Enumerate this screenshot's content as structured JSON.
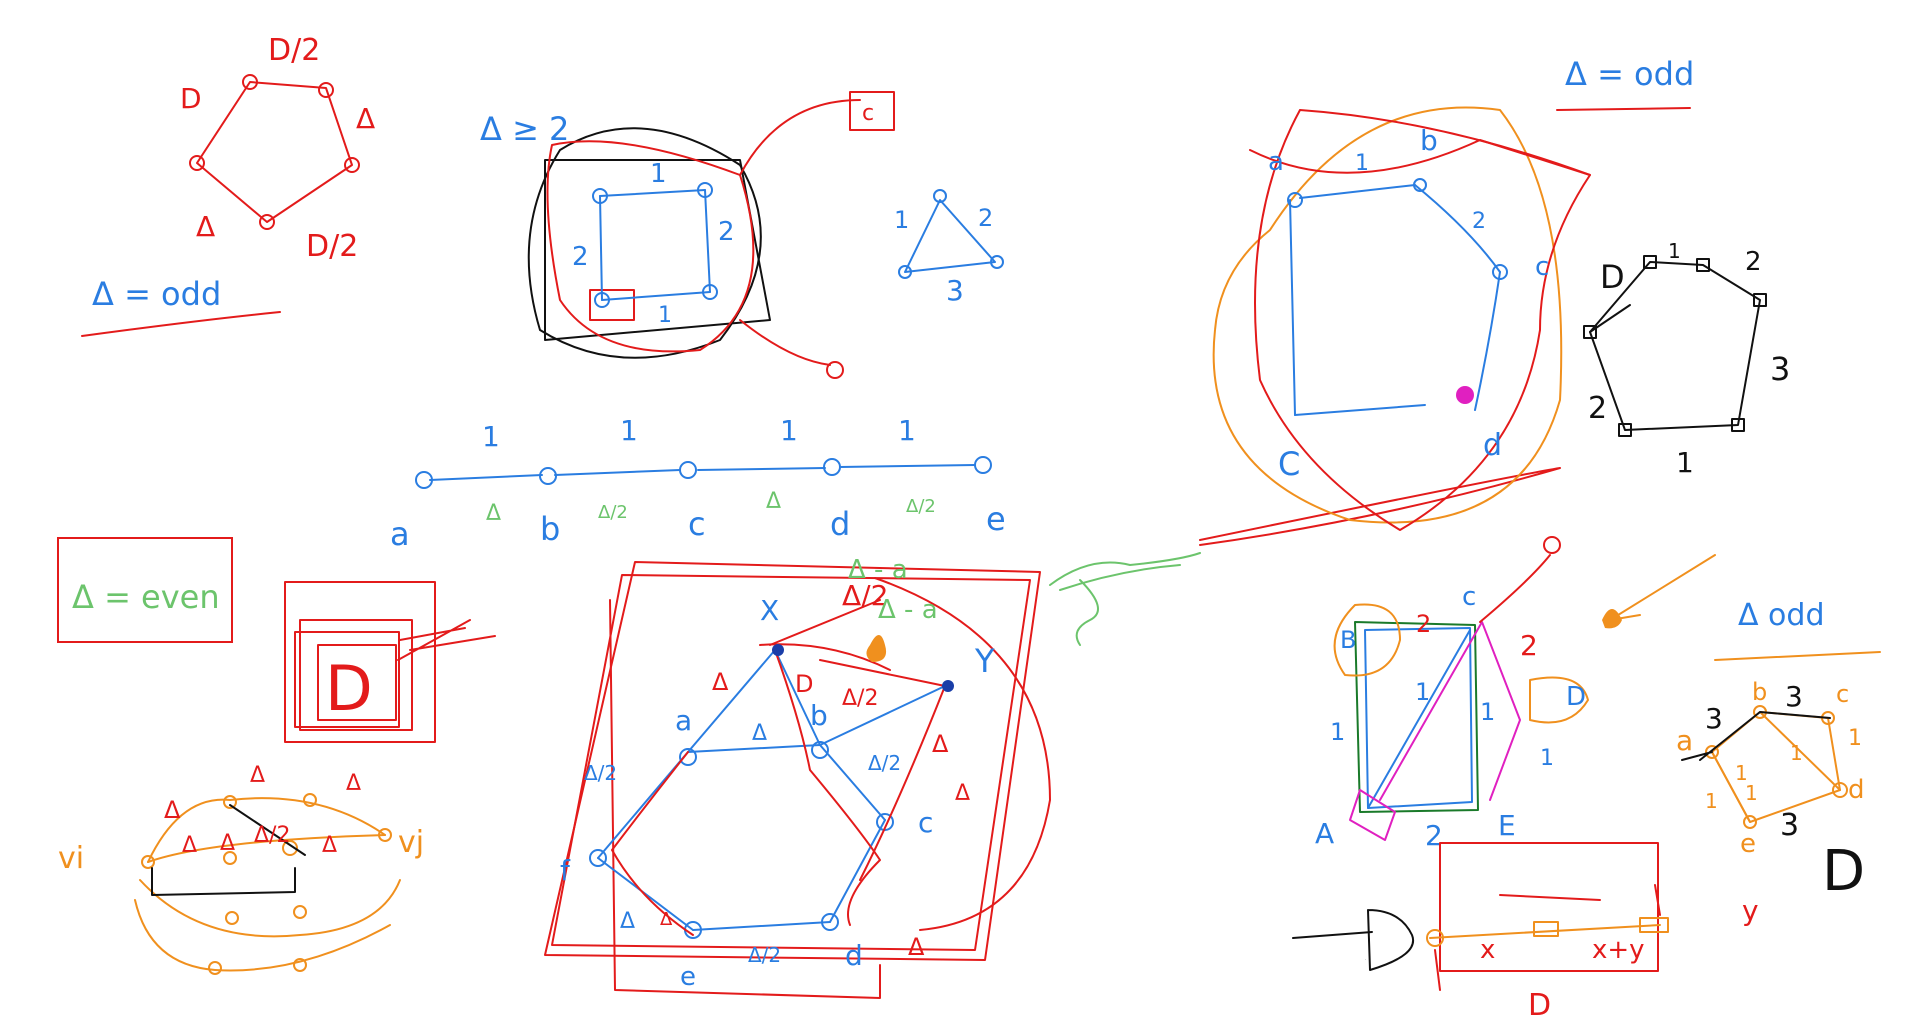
{
  "colors": {
    "red": "#e31b1b",
    "blue": "#2a7de1",
    "green": "#6cc46c",
    "orange": "#f0901e",
    "black": "#111111",
    "magenta": "#e020c0",
    "darkgreen": "#1a7a2a",
    "darkblue": "#1a3ea8"
  },
  "labels": {
    "p1_d2_top": "D/2",
    "p1_d_left": "D",
    "p1_delta_right": "Δ",
    "p1_delta_left": "Δ",
    "p1_d2_bottom": "D/2",
    "p1_cond": "Δ = odd",
    "p2_cond": "Δ ≥ 2",
    "p2_e1": "1",
    "p2_e2a": "2",
    "p2_e2b": "2",
    "p2_e1b": "1",
    "tri_e1": "1",
    "tri_e2": "2",
    "tri_e3": "3",
    "path_w1": "1",
    "path_w2": "1",
    "path_w3": "1",
    "path_w4": "1",
    "path_a": "a",
    "path_b": "b",
    "path_c": "c",
    "path_d": "d",
    "path_e": "e",
    "path_g1": "Δ",
    "path_g2": "Δ/2",
    "path_g3": "Δ",
    "path_g4": "Δ/2",
    "even_box": "Δ = even",
    "even_D": "D",
    "vi": "vi",
    "vj": "vj",
    "ov_t1": "Δ",
    "ov_t2": "Δ",
    "ov_m1": "Δ",
    "ov_m2": "Δ",
    "ov_m3": "Δ",
    "ov_mid": "Δ/2",
    "ov_l": "Δ",
    "big_x": "X",
    "big_y": "Y",
    "big_top": "Δ/2",
    "big_green": "Δ - a",
    "big_green_top": "Δ - a",
    "big_a": "a",
    "big_b": "b",
    "big_c": "c",
    "big_d": "d",
    "big_e": "e",
    "big_f": "f",
    "big_d1": "Δ",
    "big_d2": "Δ",
    "big_d3": "Δ/2",
    "big_d4": "Δ/2",
    "big_d5": "Δ",
    "big_d6": "Δ/2",
    "big_d7": "Δ",
    "big_dpa": "D",
    "big_dpb": "Δ/2",
    "big_r1": "Δ",
    "big_r2": "Δ",
    "big_r3": "Δ",
    "tr_cond": "Δ = odd",
    "tr_a": "a",
    "tr_b": "b",
    "tr_c": "c",
    "tr_C": "C",
    "tr_d": "d",
    "tr_1": "1",
    "tr_2": "2",
    "hex_D": "D",
    "hex_1": "1",
    "hex_2": "2",
    "hex_3": "3",
    "hex_2b": "2",
    "hex_1b": "1",
    "br_c": "c",
    "br_B": "B",
    "br_D": "D",
    "br_2a": "2",
    "br_2b": "2",
    "br_1a": "1",
    "br_1b": "1",
    "br_1c": "1",
    "br_1d": "1",
    "br_A": "A",
    "br_2c": "2",
    "br_E": "E",
    "br_x": "x",
    "br_xy": "x+y",
    "br_D2": "D",
    "br_D3": "D",
    "ord_cond": "Δ odd",
    "ord_a": "a",
    "ord_b": "b",
    "ord_c": "c",
    "ord_d": "d",
    "ord_e": "e",
    "ord_3a": "3",
    "ord_3b": "3",
    "ord_3c": "3",
    "ord_1a": "1",
    "ord_1b": "1",
    "ord_1c": "1",
    "ord_1d": "1",
    "ord_1e": "1",
    "ord_D": "D",
    "ord_y": "y"
  }
}
